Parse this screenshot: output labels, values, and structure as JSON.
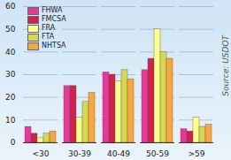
{
  "chart_data": {
    "type": "bar",
    "categories": [
      "<30",
      "30-39",
      "40-49",
      "50-59",
      ">59"
    ],
    "series": [
      {
        "name": "FHWA",
        "color": "#e8389a",
        "values": [
          7,
          25,
          31,
          32,
          6
        ]
      },
      {
        "name": "FMCSA",
        "color": "#d4204a",
        "values": [
          4,
          25,
          30,
          37,
          5
        ]
      },
      {
        "name": "FRA",
        "color": "#ffff8c",
        "values": [
          2,
          11,
          27,
          50,
          11
        ]
      },
      {
        "name": "FTA",
        "color": "#d8d850",
        "values": [
          4,
          18,
          32,
          40,
          7
        ]
      },
      {
        "name": "NHTSA",
        "color": "#f5a742",
        "values": [
          5,
          22,
          28,
          37,
          8
        ]
      }
    ],
    "ylim": [
      0,
      60
    ],
    "yticks": [
      0,
      10,
      20,
      30,
      40,
      50,
      60
    ],
    "grid": true,
    "legend": "top-left",
    "caption": "Source: USDOT"
  }
}
